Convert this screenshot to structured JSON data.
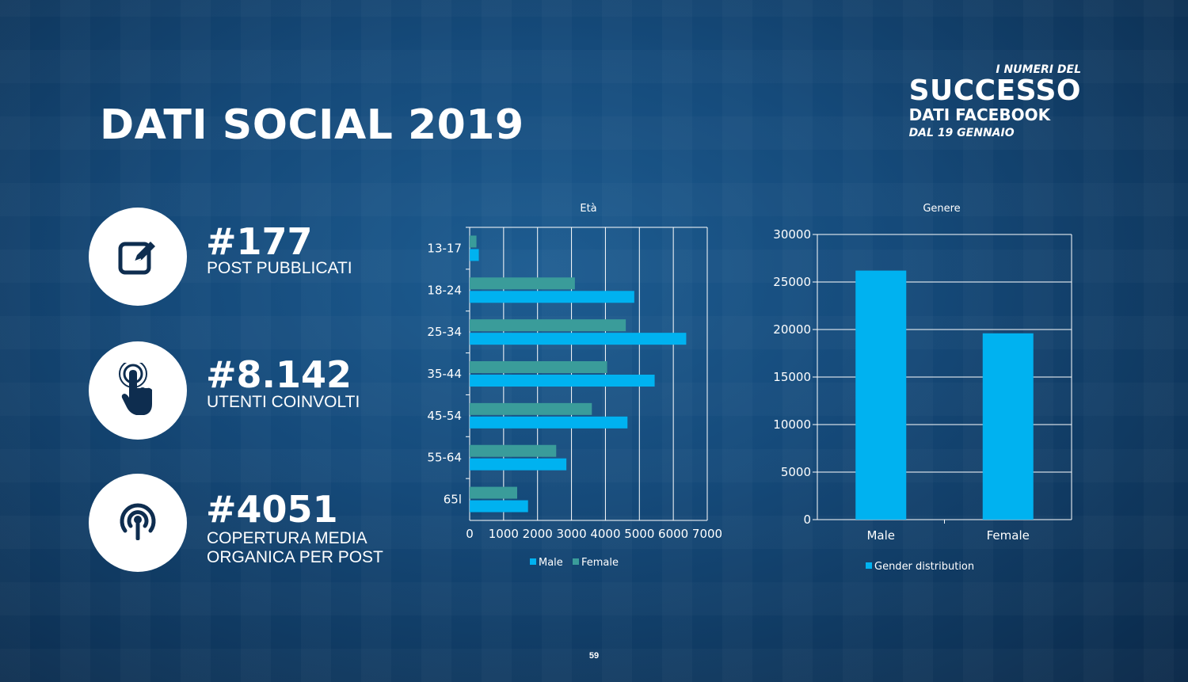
{
  "header": {
    "title": "DATI SOCIAL 2019",
    "brand": {
      "line1": "I NUMERI DEL",
      "line2": "SUCCESSO",
      "line3": "DATI FACEBOOK",
      "line4": "DAL 19 GENNAIO"
    }
  },
  "stats": [
    {
      "value": "#177",
      "label_lines": [
        "POST PUBBLICATI"
      ],
      "icon": "edit-icon"
    },
    {
      "value": "#8.142",
      "label_lines": [
        "UTENTI COINVOLTI"
      ],
      "icon": "touch-hand-icon"
    },
    {
      "value": "#4051",
      "label_lines": [
        "COPERTURA MEDIA",
        "ORGANICA PER POST"
      ],
      "icon": "broadcast-icon"
    }
  ],
  "page_number": "59",
  "colors": {
    "male": "#00b2f0",
    "female": "#3a9c9a",
    "gender": "#00b2f0"
  },
  "chart_data": [
    {
      "type": "bar",
      "orientation": "horizontal",
      "title": "Età",
      "categories": [
        "13-17",
        "18-24",
        "25-34",
        "35-44",
        "45-54",
        "55-64",
        "65l"
      ],
      "series": [
        {
          "name": "Female",
          "values": [
            200,
            3100,
            4600,
            4050,
            3600,
            2550,
            1400
          ]
        },
        {
          "name": "Male",
          "values": [
            270,
            4850,
            6380,
            5450,
            4650,
            2850,
            1720
          ]
        }
      ],
      "xlim": [
        0,
        7000
      ],
      "xticks": [
        "0",
        "1000",
        "2000",
        "3000",
        "4000",
        "5000",
        "6000",
        "7000"
      ],
      "grid": true,
      "legend": [
        "Male",
        "Female"
      ],
      "legend_position": "bottom"
    },
    {
      "type": "bar",
      "title": "Genere",
      "categories": [
        "Male",
        "Female"
      ],
      "series": [
        {
          "name": "Gender distribution",
          "values": [
            26200,
            19600
          ]
        }
      ],
      "ylim": [
        0,
        30000
      ],
      "yticks": [
        "0",
        "5000",
        "10000",
        "15000",
        "20000",
        "25000",
        "30000"
      ],
      "grid": true,
      "legend": [
        "Gender distribution"
      ],
      "legend_position": "bottom"
    }
  ]
}
